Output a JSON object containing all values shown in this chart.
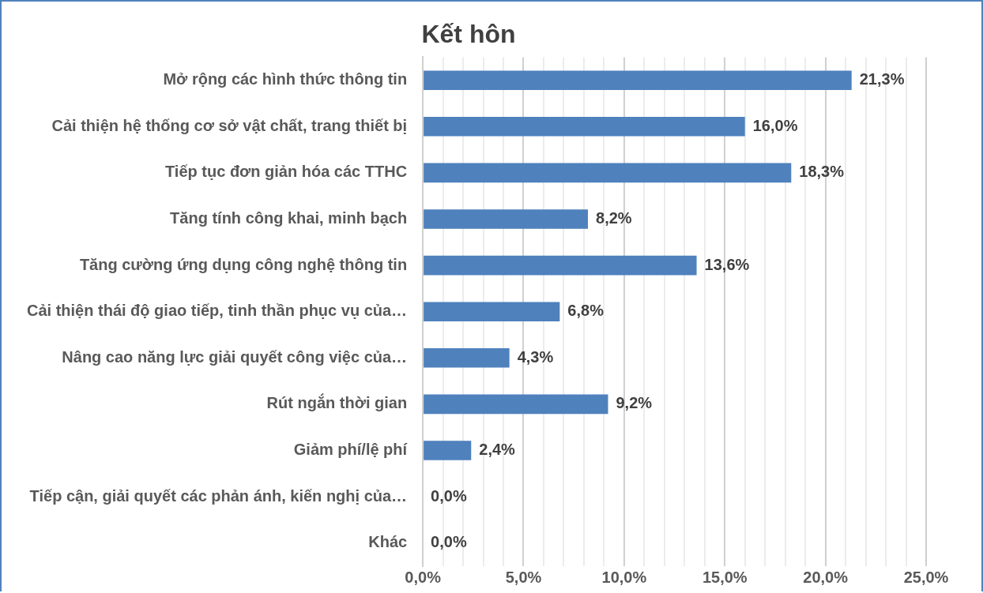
{
  "chart_data": {
    "type": "bar",
    "orientation": "horizontal",
    "title": "Kết hôn",
    "categories": [
      "Mở rộng các hình thức thông tin",
      "Cải thiện hệ thống cơ sở vật chất, trang thiết bị",
      "Tiếp tục đơn giản hóa các TTHC",
      "Tăng tính công khai, minh bạch",
      "Tăng cường ứng dụng công nghệ thông tin",
      "Cải thiện thái độ giao tiếp, tinh thần phục vụ của…",
      "Nâng cao năng lực giải quyết công việc của…",
      "Rút ngắn thời gian",
      "Giảm phí/lệ phí",
      "Tiếp cận, giải quyết các phản ánh, kiến nghị của…",
      "Khác"
    ],
    "values": [
      21.3,
      16.0,
      18.3,
      8.2,
      13.6,
      6.8,
      4.3,
      9.2,
      2.4,
      0.0,
      0.0
    ],
    "value_labels": [
      "21,3%",
      "16,0%",
      "18,3%",
      "8,2%",
      "13,6%",
      "6,8%",
      "4,3%",
      "9,2%",
      "2,4%",
      "0,0%",
      "0,0%"
    ],
    "color": "#4f81bd",
    "xlim": [
      0,
      25
    ],
    "xticks": [
      {
        "value": 0,
        "label": "0,0%"
      },
      {
        "value": 1,
        "label": null
      },
      {
        "value": 2,
        "label": null
      },
      {
        "value": 3,
        "label": null
      },
      {
        "value": 4,
        "label": null
      },
      {
        "value": 5,
        "label": "5,0%"
      },
      {
        "value": 6,
        "label": null
      },
      {
        "value": 7,
        "label": null
      },
      {
        "value": 8,
        "label": null
      },
      {
        "value": 9,
        "label": null
      },
      {
        "value": 10,
        "label": "10,0%"
      },
      {
        "value": 11,
        "label": null
      },
      {
        "value": 12,
        "label": null
      },
      {
        "value": 13,
        "label": null
      },
      {
        "value": 14,
        "label": null
      },
      {
        "value": 15,
        "label": "15,0%"
      },
      {
        "value": 16,
        "label": null
      },
      {
        "value": 17,
        "label": null
      },
      {
        "value": 18,
        "label": null
      },
      {
        "value": 19,
        "label": null
      },
      {
        "value": 20,
        "label": "20,0%"
      },
      {
        "value": 21,
        "label": null
      },
      {
        "value": 22,
        "label": null
      },
      {
        "value": 23,
        "label": null
      },
      {
        "value": 24,
        "label": null
      },
      {
        "value": 25,
        "label": "25,0%"
      }
    ],
    "grid": "x",
    "legend": false
  }
}
